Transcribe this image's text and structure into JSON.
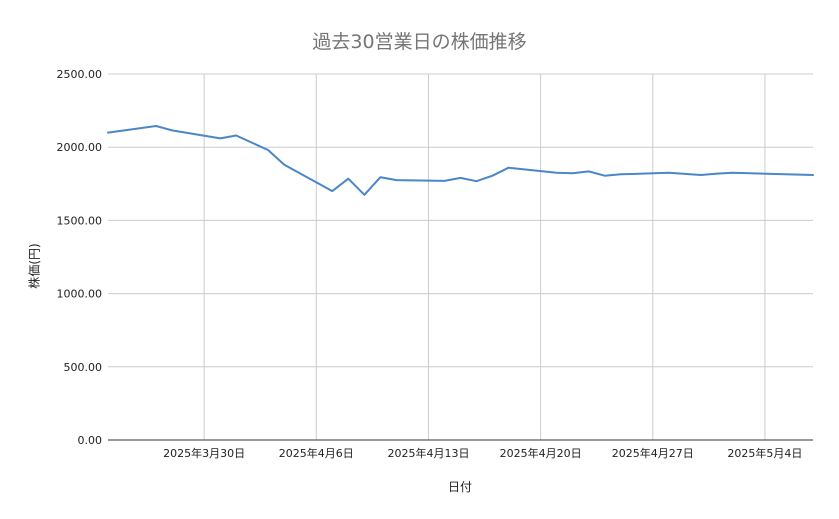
{
  "chart_data": {
    "type": "line",
    "title": "過去30営業日の株価推移",
    "xlabel": "日付",
    "ylabel": "株価(円)",
    "ylim": [
      0,
      2500
    ],
    "y_ticks": [
      "0.00",
      "500.00",
      "1000.00",
      "1500.00",
      "2000.00",
      "2500.00"
    ],
    "x_tick_labels": [
      {
        "date": "2025-03-30",
        "label": "2025年3月30日"
      },
      {
        "date": "2025-04-06",
        "label": "2025年4月6日"
      },
      {
        "date": "2025-04-13",
        "label": "2025年4月13日"
      },
      {
        "date": "2025-04-20",
        "label": "2025年4月20日"
      },
      {
        "date": "2025-04-27",
        "label": "2025年4月27日"
      },
      {
        "date": "2025-05-04",
        "label": "2025年5月4日"
      }
    ],
    "x_range": [
      "2025-03-24",
      "2025-05-07"
    ],
    "grid": true,
    "line_color": "#4a86c8",
    "series": [
      {
        "x": [
          "2025-03-24",
          "2025-03-27",
          "2025-03-28",
          "2025-03-31",
          "2025-04-01",
          "2025-04-03",
          "2025-04-04",
          "2025-04-07",
          "2025-04-08",
          "2025-04-09",
          "2025-04-10",
          "2025-04-11",
          "2025-04-14",
          "2025-04-15",
          "2025-04-16",
          "2025-04-17",
          "2025-04-18",
          "2025-04-21",
          "2025-04-22",
          "2025-04-23",
          "2025-04-24",
          "2025-04-25",
          "2025-04-28",
          "2025-04-30",
          "2025-05-01",
          "2025-05-02",
          "2025-05-07"
        ],
        "values": [
          2100,
          2145,
          2115,
          2060,
          2080,
          1980,
          1880,
          1700,
          1785,
          1675,
          1795,
          1775,
          1770,
          1790,
          1768,
          1805,
          1860,
          1825,
          1822,
          1835,
          1805,
          1815,
          1825,
          1810,
          1820,
          1825,
          1810
        ]
      }
    ]
  }
}
